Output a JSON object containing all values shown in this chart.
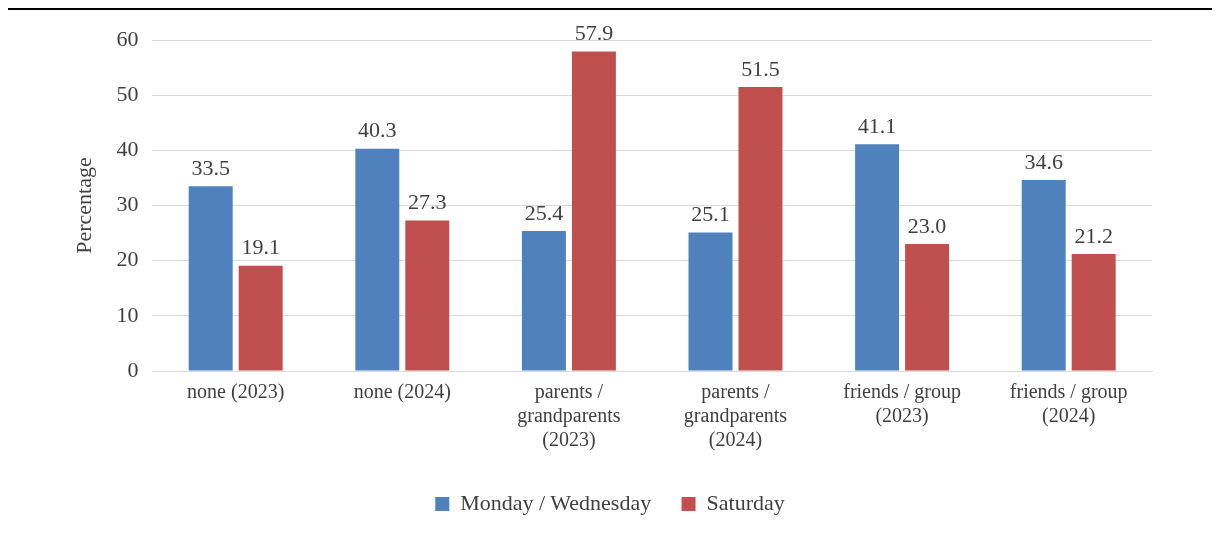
{
  "chart_data": {
    "type": "bar",
    "ylabel": "Percentage",
    "categories": [
      "none (2023)",
      "none (2024)",
      "parents / grandparents (2023)",
      "parents / grandparents (2024)",
      "friends / group (2023)",
      "friends / group (2024)"
    ],
    "series": [
      {
        "name": "Monday / Wednesday",
        "color": "#4f81bd",
        "values": [
          33.5,
          40.3,
          25.4,
          25.1,
          41.1,
          34.6
        ],
        "value_labels": [
          "33.5",
          "40.3",
          "25.4",
          "25.1",
          "41.1",
          "34.6"
        ]
      },
      {
        "name": "Saturday",
        "color": "#c0504d",
        "values": [
          19.1,
          27.3,
          57.9,
          51.5,
          23.0,
          21.2
        ],
        "value_labels": [
          "19.1",
          "27.3",
          "57.9",
          "51.5",
          "23.0",
          "21.2"
        ]
      }
    ],
    "ylim": [
      0,
      60
    ],
    "yticks": [
      0,
      10,
      20,
      30,
      40,
      50,
      60
    ],
    "grid": "y",
    "legend": "bottom"
  }
}
